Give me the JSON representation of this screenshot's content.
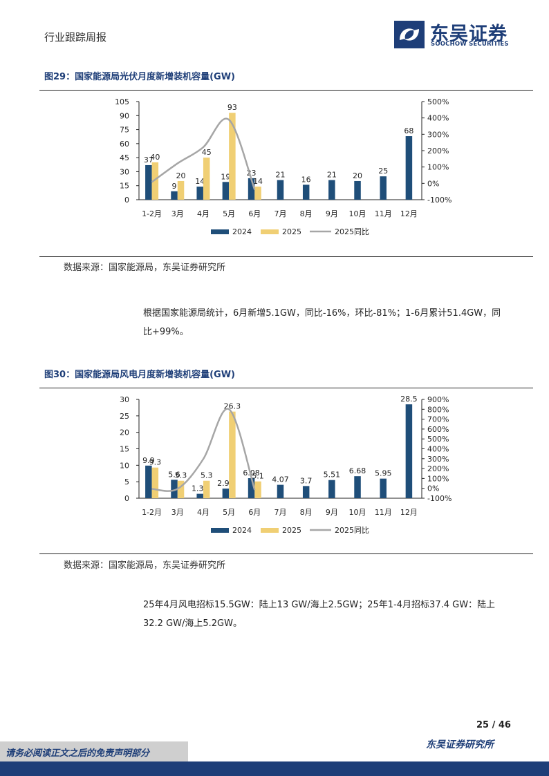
{
  "header": {
    "section_label": "行业跟踪周报",
    "logo_cn": "东吴证券",
    "logo_en": "SOOCHOW SECURITIES",
    "brand_color": "#1e3e78"
  },
  "figure29": {
    "title": "图29：国家能源局光伏月度新增装机容量(GW)",
    "source": "数据来源：国家能源局，东吴证券研究所"
  },
  "figure30": {
    "title": "图30：国家能源局风电月度新增装机容量(GW)",
    "source": "数据来源：国家能源局，东吴证券研究所"
  },
  "paragraph1": "根据国家能源局统计，6月新增5.1GW，同比-16%，环比-81%；1-6月累计51.4GW，同比+99%。",
  "paragraph2": "25年4月风电招标15.5GW：陆上13 GW/海上2.5GW；25年1-4月招标37.4 GW：陆上32.2 GW/海上5.2GW。",
  "footer": {
    "page_number": "25 / 46",
    "disclaimer": "请务必阅读正文之后的免责声明部分",
    "institute": "东吴证券研究所"
  },
  "chart_data": [
    {
      "type": "bar",
      "categories": [
        "1-2月",
        "3月",
        "4月",
        "5月",
        "6月",
        "7月",
        "8月",
        "9月",
        "10月",
        "11月",
        "12月"
      ],
      "series": [
        {
          "name": "2024",
          "kind": "bar",
          "color": "#1f4e79",
          "values": [
            37,
            9,
            14,
            19,
            23,
            21,
            16,
            21,
            20,
            25,
            68
          ],
          "labels": [
            "37",
            "9",
            "14",
            "19",
            "23",
            "21",
            "16",
            "21",
            "20",
            "25",
            "68"
          ]
        },
        {
          "name": "2025",
          "kind": "bar",
          "color": "#f0cf74",
          "values": [
            40,
            20,
            45,
            93,
            14,
            null,
            null,
            null,
            null,
            null,
            null
          ],
          "labels": [
            "40",
            "20",
            "45",
            "93",
            "14",
            null,
            null,
            null,
            null,
            null,
            null
          ]
        },
        {
          "name": "2025同比",
          "kind": "line",
          "axis": "right",
          "color": "#a6a6a6",
          "values": [
            8,
            122,
            221,
            389,
            -39,
            null,
            null,
            null,
            null,
            null,
            null
          ]
        }
      ],
      "ylim": [
        0,
        105
      ],
      "yticks": [
        "0",
        "15",
        "30",
        "45",
        "60",
        "75",
        "90",
        "105"
      ],
      "y2lim": [
        -100,
        500
      ],
      "y2ticks": [
        "-100%",
        "0%",
        "100%",
        "200%",
        "300%",
        "400%",
        "500%"
      ],
      "legend": "bottom"
    },
    {
      "type": "bar",
      "categories": [
        "1-2月",
        "3月",
        "4月",
        "5月",
        "6月",
        "7月",
        "8月",
        "9月",
        "10月",
        "11月",
        "12月"
      ],
      "series": [
        {
          "name": "2024",
          "kind": "bar",
          "color": "#1f4e79",
          "values": [
            9.9,
            5.6,
            1.34,
            2.92,
            6.08,
            4.07,
            3.7,
            5.51,
            6.68,
            5.95,
            28.5
          ],
          "labels": [
            "9.9",
            "5.6",
            "1.34",
            "2.92",
            "6.08",
            "4.07",
            "3.7",
            "5.51",
            "6.68",
            "5.95",
            "28.5"
          ]
        },
        {
          "name": "2025",
          "kind": "bar",
          "color": "#f0cf74",
          "values": [
            9.3,
            5.3,
            5.3,
            26.3,
            5.1,
            null,
            null,
            null,
            null,
            null,
            null
          ],
          "labels": [
            "9.3",
            "5.3",
            "5.3",
            "26.3",
            "5.1",
            null,
            null,
            null,
            null,
            null,
            null
          ]
        },
        {
          "name": "2025同比",
          "kind": "line",
          "axis": "right",
          "color": "#a6a6a6",
          "values": [
            -6,
            -5,
            296,
            801,
            -16,
            null,
            null,
            null,
            null,
            null,
            null
          ]
        }
      ],
      "ylim": [
        0,
        30
      ],
      "yticks": [
        "0",
        "5",
        "10",
        "15",
        "20",
        "25",
        "30"
      ],
      "y2lim": [
        -100,
        900
      ],
      "y2ticks": [
        "-100%",
        "0%",
        "100%",
        "200%",
        "300%",
        "400%",
        "500%",
        "600%",
        "700%",
        "800%",
        "900%"
      ],
      "legend": "bottom"
    }
  ]
}
